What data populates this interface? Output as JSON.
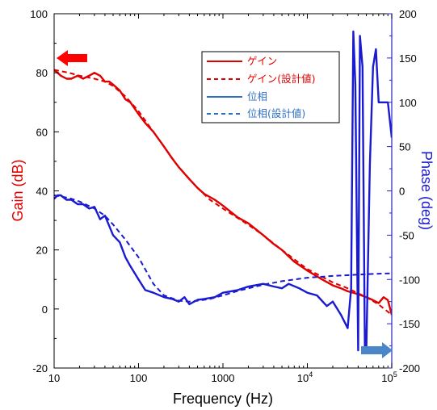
{
  "chart_data": {
    "type": "line",
    "xlabel": "Frequency (Hz)",
    "ylabel_left": "Gain (dB)",
    "ylabel_right": "Phase (deg)",
    "x_scale": "log",
    "xlim": [
      10,
      100000
    ],
    "ylim_left": [
      -20,
      100
    ],
    "ylim_right": [
      -200,
      200
    ],
    "x_ticks": [
      "10",
      "100",
      "1000",
      "10⁴",
      "10⁵"
    ],
    "x_tick_values": [
      10,
      100,
      1000,
      10000,
      100000
    ],
    "y_ticks_left": [
      -20,
      0,
      20,
      40,
      60,
      80,
      100
    ],
    "y_ticks_right": [
      -200,
      -150,
      -100,
      -50,
      0,
      50,
      100,
      150,
      200
    ],
    "grid": false,
    "legend_position": "top-right",
    "colors": {
      "gain": "#e00000",
      "phase": "#1a1ad0",
      "phase_legend": "#2e6fc4",
      "gain_arrow": "#ff0000",
      "phase_arrow": "#4a86c8"
    },
    "series": [
      {
        "name": "ゲイン",
        "axis": "left",
        "style": "solid",
        "color": "#e00000",
        "x": [
          10,
          11,
          12,
          14,
          16,
          19,
          22,
          26,
          30,
          35,
          40,
          45,
          50,
          60,
          70,
          80,
          100,
          120,
          150,
          200,
          250,
          300,
          400,
          500,
          600,
          800,
          1000,
          1500,
          2000,
          3000,
          4000,
          5000,
          7000,
          10000,
          15000,
          20000,
          25000,
          30000,
          40000,
          50000,
          60000,
          70000,
          80000,
          90000,
          100000
        ],
        "y": [
          81,
          80,
          79,
          78,
          78,
          79,
          78,
          79,
          80,
          79,
          77,
          77,
          76,
          74,
          71,
          70,
          66,
          63,
          60,
          55,
          51,
          48,
          44,
          41,
          39,
          37,
          35,
          31,
          29,
          25,
          22,
          20,
          16,
          13,
          10,
          8,
          7,
          6,
          5,
          4,
          3,
          2,
          4,
          3,
          -2
        ]
      },
      {
        "name": "ゲイン(設計値)",
        "axis": "left",
        "style": "dashed",
        "color": "#e00000",
        "x": [
          10,
          15,
          20,
          30,
          40,
          50,
          70,
          100,
          150,
          200,
          300,
          500,
          700,
          1000,
          2000,
          3000,
          5000,
          10000,
          20000,
          30000,
          50000,
          70000,
          100000
        ],
        "y": [
          81,
          80,
          79,
          78,
          77,
          75.5,
          72,
          67,
          60,
          55,
          48,
          41,
          37,
          34,
          28.5,
          25,
          20,
          13.5,
          9,
          7,
          4,
          1.5,
          -2
        ]
      },
      {
        "name": "位相",
        "axis": "right",
        "style": "solid",
        "color": "#1a1ad0",
        "x": [
          10,
          11,
          12,
          14,
          16,
          19,
          22,
          26,
          30,
          35,
          40,
          50,
          60,
          70,
          80,
          100,
          120,
          150,
          200,
          250,
          300,
          350,
          400,
          500,
          600,
          800,
          1000,
          1500,
          2000,
          3000,
          4000,
          5000,
          6000,
          8000,
          10000,
          13000,
          17000,
          20000,
          25000,
          30000,
          33000,
          35000,
          37000,
          40000,
          42000,
          45000,
          48000,
          50000,
          55000,
          60000,
          65000,
          70000,
          80000,
          90000,
          100000
        ],
        "y": [
          -9,
          -5,
          -5,
          -10,
          -10,
          -15,
          -15,
          -20,
          -18,
          -32,
          -28,
          -50,
          -58,
          -75,
          -85,
          -100,
          -112,
          -115,
          -120,
          -122,
          -125,
          -120,
          -128,
          -123,
          -122,
          -120,
          -115,
          -112,
          -108,
          -105,
          -108,
          -110,
          -105,
          -110,
          -115,
          -118,
          -130,
          -125,
          -140,
          -155,
          -110,
          180,
          120,
          -180,
          175,
          140,
          -175,
          -180,
          30,
          140,
          160,
          100,
          100,
          100,
          60
        ]
      },
      {
        "name": "位相(設計値)",
        "axis": "right",
        "style": "dashed",
        "color": "#1a1ad0",
        "x": [
          10,
          15,
          20,
          30,
          40,
          50,
          70,
          100,
          150,
          200,
          300,
          400,
          500,
          700,
          1000,
          1500,
          2000,
          3000,
          5000,
          7000,
          10000,
          20000,
          50000,
          100000
        ],
        "y": [
          -5,
          -8,
          -12,
          -20,
          -28,
          -38,
          -55,
          -75,
          -105,
          -118,
          -124,
          -125,
          -124,
          -122,
          -118,
          -113,
          -110,
          -106,
          -102,
          -100,
          -98,
          -96,
          -94,
          -93
        ]
      }
    ]
  }
}
